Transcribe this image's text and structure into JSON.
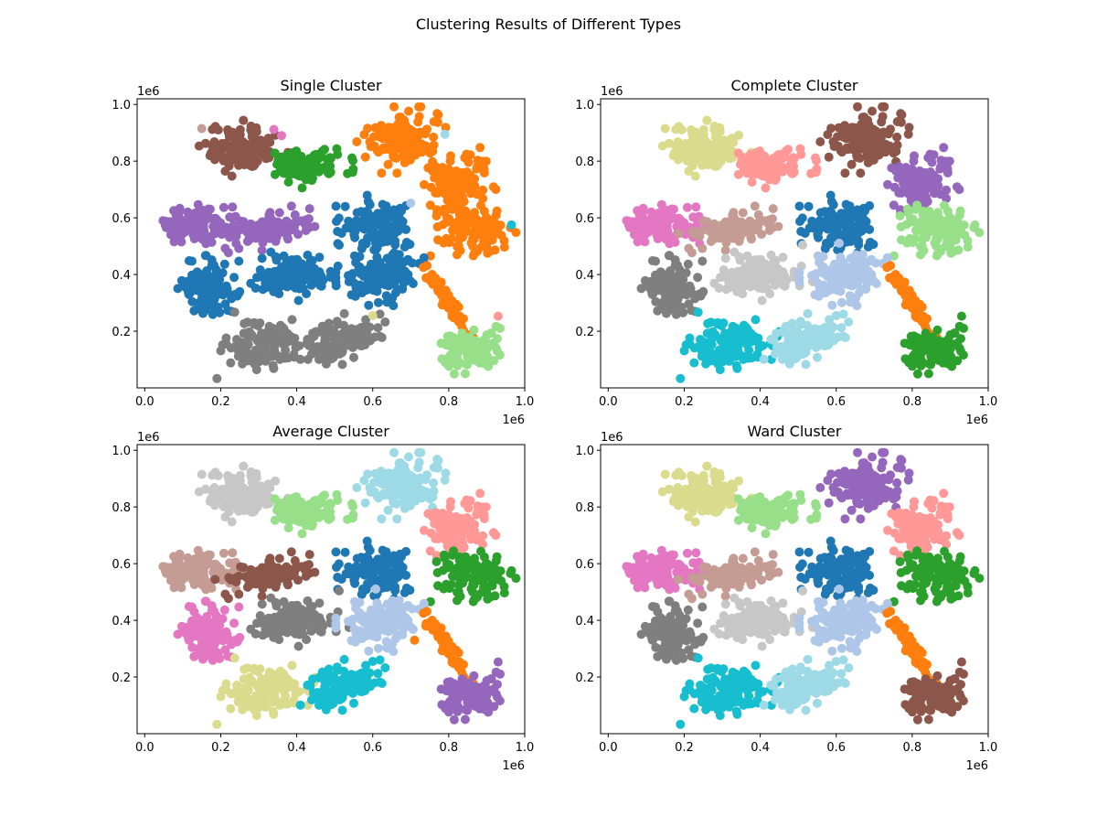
{
  "figure": {
    "title": "Clustering Results of Different Types",
    "x_axis_exponent": "1e6",
    "y_axis_exponent": "1e6"
  },
  "chart_data": [
    {
      "type": "scatter",
      "title": "Single Cluster",
      "xlim": [
        -0.02,
        1.0
      ],
      "ylim": [
        0.0,
        1.02
      ],
      "xticks": [
        "0.0",
        "0.2",
        "0.4",
        "0.6",
        "0.8",
        "1.0"
      ],
      "yticks": [
        "0.2",
        "0.4",
        "0.6",
        "0.8",
        "1.0"
      ],
      "grid": false,
      "clusters": [
        {
          "center": [
            0.26,
            0.845
          ],
          "spread": [
            0.045,
            0.038
          ],
          "tilt": 0.0,
          "n": 120,
          "color": "#8c564b"
        },
        {
          "center": [
            0.43,
            0.79
          ],
          "spread": [
            0.045,
            0.03
          ],
          "tilt": 0.25,
          "n": 110,
          "color": "#2ca02c"
        },
        {
          "center": [
            0.675,
            0.875
          ],
          "spread": [
            0.045,
            0.045
          ],
          "tilt": 0.0,
          "n": 120,
          "color": "#ff7f0e"
        },
        {
          "center": [
            0.825,
            0.73
          ],
          "spread": [
            0.04,
            0.05
          ],
          "tilt": -0.6,
          "n": 110,
          "color": "#ff7f0e"
        },
        {
          "center": [
            0.86,
            0.56
          ],
          "spread": [
            0.045,
            0.045
          ],
          "tilt": 0.0,
          "n": 120,
          "color": "#ff7f0e"
        },
        {
          "center": [
            0.14,
            0.575
          ],
          "spread": [
            0.055,
            0.028
          ],
          "tilt": -0.1,
          "n": 120,
          "color": "#9467bd"
        },
        {
          "center": [
            0.33,
            0.56
          ],
          "spread": [
            0.055,
            0.025
          ],
          "tilt": 0.3,
          "n": 110,
          "color": "#9467bd"
        },
        {
          "center": [
            0.61,
            0.57
          ],
          "spread": [
            0.045,
            0.045
          ],
          "tilt": 0.0,
          "n": 120,
          "color": "#1f77b4"
        },
        {
          "center": [
            0.17,
            0.35
          ],
          "spread": [
            0.035,
            0.045
          ],
          "tilt": 0.0,
          "n": 110,
          "color": "#1f77b4"
        },
        {
          "center": [
            0.4,
            0.4
          ],
          "spread": [
            0.05,
            0.035
          ],
          "tilt": 0.2,
          "n": 120,
          "color": "#1f77b4"
        },
        {
          "center": [
            0.62,
            0.4
          ],
          "spread": [
            0.045,
            0.045
          ],
          "tilt": 0.0,
          "n": 120,
          "color": "#1f77b4"
        },
        {
          "center": [
            0.32,
            0.15
          ],
          "spread": [
            0.05,
            0.045
          ],
          "tilt": 0.0,
          "n": 120,
          "color": "#7f7f7f"
        },
        {
          "center": [
            0.52,
            0.17
          ],
          "spread": [
            0.05,
            0.03
          ],
          "tilt": 0.5,
          "n": 110,
          "color": "#7f7f7f"
        },
        {
          "center": [
            0.8,
            0.3
          ],
          "spread": [
            0.008,
            0.055
          ],
          "tilt": 0.45,
          "n": 70,
          "color": "#ff7f0e"
        },
        {
          "center": [
            0.86,
            0.14
          ],
          "spread": [
            0.035,
            0.035
          ],
          "tilt": 0.0,
          "n": 110,
          "color": "#98df8a"
        }
      ],
      "outliers": [
        {
          "x": 0.15,
          "y": 0.915,
          "color": "#c49c94"
        },
        {
          "x": 0.34,
          "y": 0.912,
          "color": "#e377c2"
        },
        {
          "x": 0.36,
          "y": 0.89,
          "color": "#e377c2"
        },
        {
          "x": 0.79,
          "y": 0.895,
          "color": "#9edae5"
        },
        {
          "x": 0.7,
          "y": 0.652,
          "color": "#aec7e8"
        },
        {
          "x": 0.965,
          "y": 0.575,
          "color": "#17becf"
        },
        {
          "x": 0.6,
          "y": 0.255,
          "color": "#dbdb8d"
        },
        {
          "x": 0.935,
          "y": 0.21,
          "color": "#98df8a"
        },
        {
          "x": 0.93,
          "y": 0.253,
          "color": "#ff9896"
        }
      ]
    },
    {
      "type": "scatter",
      "title": "Complete Cluster",
      "xlim": [
        -0.02,
        1.0
      ],
      "ylim": [
        0.0,
        1.02
      ],
      "xticks": [
        "0.0",
        "0.2",
        "0.4",
        "0.6",
        "0.8",
        "1.0"
      ],
      "yticks": [
        "0.2",
        "0.4",
        "0.6",
        "0.8",
        "1.0"
      ],
      "grid": false,
      "clusters": [
        {
          "center": [
            0.26,
            0.845
          ],
          "spread": [
            0.045,
            0.038
          ],
          "tilt": 0.0,
          "n": 120,
          "color": "#dbdb8d"
        },
        {
          "center": [
            0.43,
            0.79
          ],
          "spread": [
            0.045,
            0.03
          ],
          "tilt": 0.25,
          "n": 110,
          "color": "#ff9896"
        },
        {
          "center": [
            0.675,
            0.875
          ],
          "spread": [
            0.045,
            0.045
          ],
          "tilt": 0.0,
          "n": 120,
          "color": "#8c564b"
        },
        {
          "center": [
            0.825,
            0.73
          ],
          "spread": [
            0.04,
            0.05
          ],
          "tilt": -0.6,
          "n": 110,
          "color": "#9467bd"
        },
        {
          "center": [
            0.86,
            0.56
          ],
          "spread": [
            0.045,
            0.045
          ],
          "tilt": 0.0,
          "n": 120,
          "color": "#98df8a"
        },
        {
          "center": [
            0.14,
            0.575
          ],
          "spread": [
            0.055,
            0.028
          ],
          "tilt": -0.1,
          "n": 120,
          "color": "#e377c2"
        },
        {
          "center": [
            0.33,
            0.56
          ],
          "spread": [
            0.055,
            0.025
          ],
          "tilt": 0.3,
          "n": 110,
          "color": "#c49c94"
        },
        {
          "center": [
            0.61,
            0.57
          ],
          "spread": [
            0.045,
            0.045
          ],
          "tilt": 0.0,
          "n": 120,
          "color": "#1f77b4"
        },
        {
          "center": [
            0.17,
            0.35
          ],
          "spread": [
            0.035,
            0.045
          ],
          "tilt": 0.0,
          "n": 110,
          "color": "#7f7f7f"
        },
        {
          "center": [
            0.4,
            0.4
          ],
          "spread": [
            0.05,
            0.035
          ],
          "tilt": 0.2,
          "n": 120,
          "color": "#c7c7c7"
        },
        {
          "center": [
            0.62,
            0.4
          ],
          "spread": [
            0.045,
            0.045
          ],
          "tilt": 0.0,
          "n": 120,
          "color": "#aec7e8"
        },
        {
          "center": [
            0.32,
            0.15
          ],
          "spread": [
            0.05,
            0.045
          ],
          "tilt": 0.0,
          "n": 120,
          "color": "#17becf"
        },
        {
          "center": [
            0.52,
            0.17
          ],
          "spread": [
            0.05,
            0.03
          ],
          "tilt": 0.5,
          "n": 110,
          "color": "#9edae5"
        },
        {
          "center": [
            0.8,
            0.3
          ],
          "spread": [
            0.008,
            0.055
          ],
          "tilt": 0.45,
          "n": 70,
          "color": "#ff7f0e"
        },
        {
          "center": [
            0.86,
            0.14
          ],
          "spread": [
            0.035,
            0.035
          ],
          "tilt": 0.0,
          "n": 110,
          "color": "#2ca02c"
        }
      ],
      "outliers": [
        {
          "x": 0.15,
          "y": 0.915,
          "color": "#dbdb8d"
        },
        {
          "x": 0.79,
          "y": 0.895,
          "color": "#8c564b"
        },
        {
          "x": 0.965,
          "y": 0.575,
          "color": "#98df8a"
        },
        {
          "x": 0.6,
          "y": 0.255,
          "color": "#9edae5"
        },
        {
          "x": 0.935,
          "y": 0.21,
          "color": "#2ca02c"
        },
        {
          "x": 0.93,
          "y": 0.253,
          "color": "#2ca02c"
        }
      ]
    },
    {
      "type": "scatter",
      "title": "Average Cluster",
      "xlim": [
        -0.02,
        1.0
      ],
      "ylim": [
        0.0,
        1.02
      ],
      "xticks": [
        "0.0",
        "0.2",
        "0.4",
        "0.6",
        "0.8",
        "1.0"
      ],
      "yticks": [
        "0.2",
        "0.4",
        "0.6",
        "0.8",
        "1.0"
      ],
      "grid": false,
      "clusters": [
        {
          "center": [
            0.26,
            0.845
          ],
          "spread": [
            0.045,
            0.038
          ],
          "tilt": 0.0,
          "n": 120,
          "color": "#c7c7c7"
        },
        {
          "center": [
            0.43,
            0.79
          ],
          "spread": [
            0.045,
            0.03
          ],
          "tilt": 0.25,
          "n": 110,
          "color": "#98df8a"
        },
        {
          "center": [
            0.675,
            0.875
          ],
          "spread": [
            0.045,
            0.045
          ],
          "tilt": 0.0,
          "n": 120,
          "color": "#9edae5"
        },
        {
          "center": [
            0.825,
            0.73
          ],
          "spread": [
            0.04,
            0.05
          ],
          "tilt": -0.6,
          "n": 110,
          "color": "#ff9896"
        },
        {
          "center": [
            0.86,
            0.56
          ],
          "spread": [
            0.045,
            0.045
          ],
          "tilt": 0.0,
          "n": 120,
          "color": "#2ca02c"
        },
        {
          "center": [
            0.14,
            0.575
          ],
          "spread": [
            0.055,
            0.028
          ],
          "tilt": -0.1,
          "n": 120,
          "color": "#c49c94"
        },
        {
          "center": [
            0.33,
            0.56
          ],
          "spread": [
            0.055,
            0.025
          ],
          "tilt": 0.3,
          "n": 110,
          "color": "#8c564b"
        },
        {
          "center": [
            0.61,
            0.57
          ],
          "spread": [
            0.045,
            0.045
          ],
          "tilt": 0.0,
          "n": 120,
          "color": "#1f77b4"
        },
        {
          "center": [
            0.17,
            0.35
          ],
          "spread": [
            0.035,
            0.045
          ],
          "tilt": 0.0,
          "n": 110,
          "color": "#e377c2"
        },
        {
          "center": [
            0.4,
            0.4
          ],
          "spread": [
            0.05,
            0.035
          ],
          "tilt": 0.2,
          "n": 120,
          "color": "#7f7f7f"
        },
        {
          "center": [
            0.62,
            0.4
          ],
          "spread": [
            0.045,
            0.045
          ],
          "tilt": 0.0,
          "n": 120,
          "color": "#aec7e8"
        },
        {
          "center": [
            0.32,
            0.15
          ],
          "spread": [
            0.05,
            0.045
          ],
          "tilt": 0.0,
          "n": 120,
          "color": "#dbdb8d"
        },
        {
          "center": [
            0.52,
            0.17
          ],
          "spread": [
            0.05,
            0.03
          ],
          "tilt": 0.5,
          "n": 110,
          "color": "#17becf"
        },
        {
          "center": [
            0.8,
            0.3
          ],
          "spread": [
            0.008,
            0.055
          ],
          "tilt": 0.45,
          "n": 70,
          "color": "#ff7f0e"
        },
        {
          "center": [
            0.86,
            0.14
          ],
          "spread": [
            0.035,
            0.035
          ],
          "tilt": 0.0,
          "n": 110,
          "color": "#9467bd"
        }
      ],
      "outliers": [
        {
          "x": 0.15,
          "y": 0.915,
          "color": "#c7c7c7"
        },
        {
          "x": 0.79,
          "y": 0.895,
          "color": "#9edae5"
        },
        {
          "x": 0.965,
          "y": 0.575,
          "color": "#2ca02c"
        },
        {
          "x": 0.6,
          "y": 0.255,
          "color": "#17becf"
        },
        {
          "x": 0.935,
          "y": 0.21,
          "color": "#9467bd"
        },
        {
          "x": 0.93,
          "y": 0.253,
          "color": "#9467bd"
        },
        {
          "x": 0.74,
          "y": 0.38,
          "color": "#ff7f0e"
        },
        {
          "x": 0.71,
          "y": 0.33,
          "color": "#ff7f0e"
        },
        {
          "x": 0.13,
          "y": 0.43,
          "color": "#e377c2"
        }
      ]
    },
    {
      "type": "scatter",
      "title": "Ward Cluster",
      "xlim": [
        -0.02,
        1.0
      ],
      "ylim": [
        0.0,
        1.02
      ],
      "xticks": [
        "0.0",
        "0.2",
        "0.4",
        "0.6",
        "0.8",
        "1.0"
      ],
      "yticks": [
        "0.2",
        "0.4",
        "0.6",
        "0.8",
        "1.0"
      ],
      "grid": false,
      "clusters": [
        {
          "center": [
            0.26,
            0.845
          ],
          "spread": [
            0.045,
            0.038
          ],
          "tilt": 0.0,
          "n": 120,
          "color": "#dbdb8d"
        },
        {
          "center": [
            0.43,
            0.79
          ],
          "spread": [
            0.045,
            0.03
          ],
          "tilt": 0.25,
          "n": 110,
          "color": "#98df8a"
        },
        {
          "center": [
            0.675,
            0.875
          ],
          "spread": [
            0.045,
            0.045
          ],
          "tilt": 0.0,
          "n": 120,
          "color": "#9467bd"
        },
        {
          "center": [
            0.825,
            0.73
          ],
          "spread": [
            0.04,
            0.05
          ],
          "tilt": -0.6,
          "n": 110,
          "color": "#ff9896"
        },
        {
          "center": [
            0.86,
            0.56
          ],
          "spread": [
            0.045,
            0.045
          ],
          "tilt": 0.0,
          "n": 120,
          "color": "#2ca02c"
        },
        {
          "center": [
            0.14,
            0.575
          ],
          "spread": [
            0.055,
            0.028
          ],
          "tilt": -0.1,
          "n": 120,
          "color": "#e377c2"
        },
        {
          "center": [
            0.33,
            0.56
          ],
          "spread": [
            0.055,
            0.025
          ],
          "tilt": 0.3,
          "n": 110,
          "color": "#c49c94"
        },
        {
          "center": [
            0.61,
            0.57
          ],
          "spread": [
            0.045,
            0.045
          ],
          "tilt": 0.0,
          "n": 120,
          "color": "#1f77b4"
        },
        {
          "center": [
            0.17,
            0.35
          ],
          "spread": [
            0.035,
            0.045
          ],
          "tilt": 0.0,
          "n": 110,
          "color": "#7f7f7f"
        },
        {
          "center": [
            0.4,
            0.4
          ],
          "spread": [
            0.05,
            0.035
          ],
          "tilt": 0.2,
          "n": 120,
          "color": "#c7c7c7"
        },
        {
          "center": [
            0.62,
            0.4
          ],
          "spread": [
            0.045,
            0.045
          ],
          "tilt": 0.0,
          "n": 120,
          "color": "#aec7e8"
        },
        {
          "center": [
            0.32,
            0.15
          ],
          "spread": [
            0.05,
            0.045
          ],
          "tilt": 0.0,
          "n": 120,
          "color": "#17becf"
        },
        {
          "center": [
            0.52,
            0.17
          ],
          "spread": [
            0.05,
            0.03
          ],
          "tilt": 0.5,
          "n": 110,
          "color": "#9edae5"
        },
        {
          "center": [
            0.8,
            0.3
          ],
          "spread": [
            0.008,
            0.055
          ],
          "tilt": 0.45,
          "n": 70,
          "color": "#ff7f0e"
        },
        {
          "center": [
            0.86,
            0.14
          ],
          "spread": [
            0.035,
            0.035
          ],
          "tilt": 0.0,
          "n": 110,
          "color": "#8c564b"
        }
      ],
      "outliers": [
        {
          "x": 0.15,
          "y": 0.915,
          "color": "#dbdb8d"
        },
        {
          "x": 0.79,
          "y": 0.895,
          "color": "#9467bd"
        },
        {
          "x": 0.965,
          "y": 0.575,
          "color": "#2ca02c"
        },
        {
          "x": 0.6,
          "y": 0.255,
          "color": "#9edae5"
        },
        {
          "x": 0.935,
          "y": 0.21,
          "color": "#8c564b"
        },
        {
          "x": 0.93,
          "y": 0.253,
          "color": "#8c564b"
        },
        {
          "x": 0.13,
          "y": 0.43,
          "color": "#7f7f7f"
        }
      ]
    }
  ]
}
